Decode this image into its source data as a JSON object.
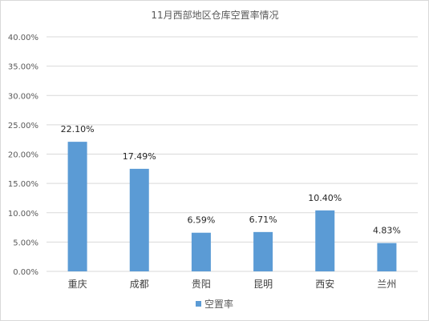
{
  "chart_data": {
    "type": "bar",
    "title": "11月西部地区仓库空置率情况",
    "categories": [
      "重庆",
      "成都",
      "贵阳",
      "昆明",
      "西安",
      "兰州"
    ],
    "series": [
      {
        "name": "空置率",
        "values": [
          22.1,
          17.49,
          6.59,
          6.71,
          10.4,
          4.83
        ],
        "data_labels": [
          "22.10%",
          "17.49%",
          "6.59%",
          "6.71%",
          "10.40%",
          "4.83%"
        ],
        "color": "#5b9bd5"
      }
    ],
    "ylim": [
      0,
      40
    ],
    "ytick_labels": [
      "0.00%",
      "5.00%",
      "10.00%",
      "15.00%",
      "20.00%",
      "25.00%",
      "30.00%",
      "35.00%",
      "40.00%"
    ],
    "grid": true,
    "gridline_color": "#d9d9d9",
    "legend_position": "bottom"
  }
}
